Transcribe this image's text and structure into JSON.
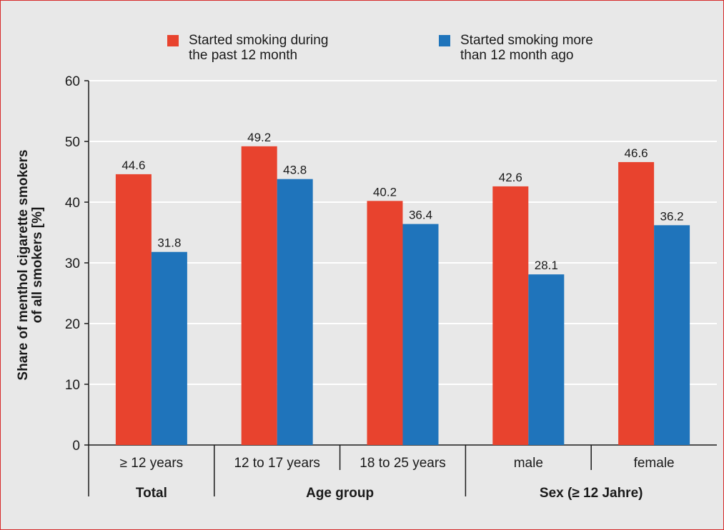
{
  "chart_data": {
    "type": "bar",
    "ylabel": "Share of menthol cigarette smokers\nof all smokers [%]",
    "ylim": [
      0,
      60
    ],
    "yticks": [
      0,
      10,
      20,
      30,
      40,
      50,
      60
    ],
    "grid": true,
    "legend_position": "top",
    "categories": [
      "≥ 12 years",
      "12 to 17 years",
      "18 to 25 years",
      "male",
      "female"
    ],
    "groups": [
      {
        "label": "Total",
        "categories": [
          "≥ 12 years"
        ]
      },
      {
        "label": "Age group",
        "categories": [
          "12 to 17 years",
          "18 to 25 years"
        ]
      },
      {
        "label": "Sex (≥ 12 Jahre)",
        "categories": [
          "male",
          "female"
        ]
      }
    ],
    "series": [
      {
        "name": "Started smoking during\nthe past 12 month",
        "color": "#e8432e",
        "values": [
          44.6,
          49.2,
          40.2,
          42.6,
          46.6
        ]
      },
      {
        "name": "Started smoking more\nthan 12 month ago",
        "color": "#1f74bb",
        "values": [
          31.8,
          43.8,
          36.4,
          28.1,
          36.2
        ]
      }
    ]
  }
}
